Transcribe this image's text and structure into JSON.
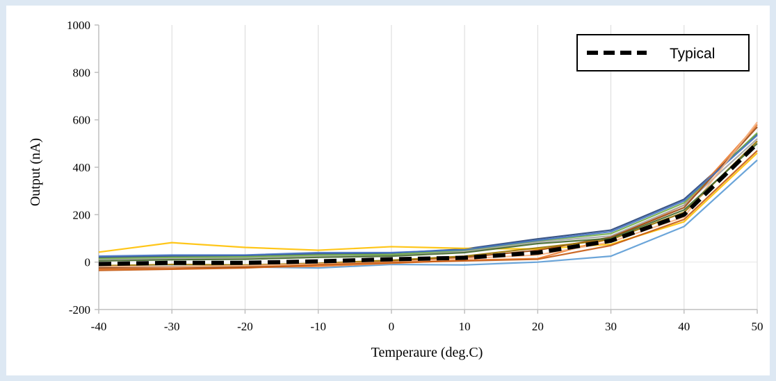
{
  "chart_data": {
    "type": "line",
    "xlabel": "Temperaure (deg.C)",
    "ylabel": "Output (nA)",
    "x": [
      -40,
      -30,
      -20,
      -10,
      0,
      10,
      20,
      30,
      40,
      50
    ],
    "xticks": [
      "-40",
      "-30",
      "-20",
      "-10",
      "0",
      "10",
      "20",
      "30",
      "40",
      "50"
    ],
    "yticks": [
      "-200",
      "0",
      "200",
      "400",
      "600",
      "800",
      "1000"
    ],
    "xlim": [
      -40,
      50
    ],
    "ylim": [
      -200,
      1000
    ],
    "grid": "vertical",
    "legend": {
      "placement": "top-right",
      "entries": [
        "Typical"
      ]
    },
    "typical": {
      "name": "Typical",
      "color": "#000000",
      "values": [
        -8,
        -3,
        -3,
        3,
        12,
        18,
        40,
        90,
        200,
        500
      ]
    },
    "samples": [
      {
        "color": "#264478",
        "values": [
          20,
          25,
          28,
          35,
          38,
          55,
          98,
          135,
          265,
          540
        ]
      },
      {
        "color": "#5b9bd5",
        "values": [
          -20,
          -18,
          -20,
          -25,
          -10,
          -12,
          0,
          25,
          150,
          430
        ]
      },
      {
        "color": "#ffc000",
        "values": [
          42,
          82,
          62,
          50,
          65,
          58,
          55,
          75,
          170,
          460
        ]
      },
      {
        "color": "#ed7d31",
        "values": [
          -30,
          -28,
          -22,
          -18,
          -5,
          8,
          15,
          100,
          240,
          580
        ]
      },
      {
        "color": "#a5a5a5",
        "values": [
          10,
          15,
          18,
          25,
          30,
          45,
          85,
          110,
          240,
          520
        ]
      },
      {
        "color": "#70ad47",
        "values": [
          15,
          20,
          22,
          30,
          32,
          50,
          90,
          120,
          250,
          545
        ]
      },
      {
        "color": "#9e480e",
        "values": [
          -25,
          -22,
          -20,
          -10,
          5,
          20,
          50,
          105,
          230,
          570
        ]
      },
      {
        "color": "#4472c4",
        "values": [
          25,
          30,
          30,
          40,
          40,
          52,
          92,
          128,
          258,
          535
        ]
      },
      {
        "color": "#997300",
        "values": [
          -15,
          -10,
          -12,
          -5,
          8,
          25,
          60,
          95,
          210,
          510
        ]
      },
      {
        "color": "#f4b183",
        "values": [
          -18,
          -20,
          -15,
          -8,
          0,
          15,
          30,
          85,
          190,
          590
        ]
      },
      {
        "color": "#43682b",
        "values": [
          5,
          10,
          12,
          20,
          25,
          40,
          78,
          100,
          220,
          500
        ]
      },
      {
        "color": "#c55a11",
        "values": [
          -35,
          -30,
          -25,
          -12,
          -2,
          5,
          12,
          70,
          180,
          470
        ]
      }
    ]
  }
}
